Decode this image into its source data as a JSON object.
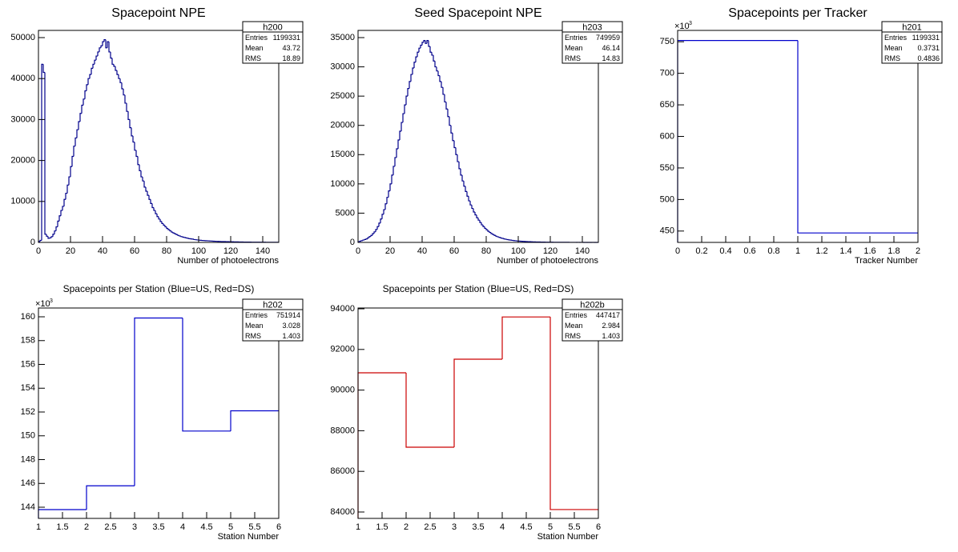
{
  "chart_data": [
    {
      "type": "histogram",
      "title": "Spacepoint NPE",
      "xlabel": "Number of photoelectrons",
      "color": "#00008b",
      "bins": [
        0,
        1,
        2,
        3,
        4,
        5,
        6,
        7,
        8,
        9,
        10,
        11,
        12,
        13,
        14,
        15,
        16,
        17,
        18,
        19,
        20,
        21,
        22,
        23,
        24,
        25,
        26,
        27,
        28,
        29,
        30,
        31,
        32,
        33,
        34,
        35,
        36,
        37,
        38,
        39,
        40,
        41,
        42,
        43,
        44,
        45,
        46,
        47,
        48,
        49,
        50,
        51,
        52,
        53,
        54,
        55,
        56,
        57,
        58,
        59,
        60,
        61,
        62,
        63,
        64,
        65,
        66,
        67,
        68,
        69,
        70,
        71,
        72,
        73,
        74,
        75,
        76,
        77,
        78,
        79,
        80,
        81,
        82,
        83,
        84,
        85,
        86,
        87,
        88,
        89,
        90,
        91,
        92,
        93,
        94,
        95,
        96,
        97,
        98,
        99,
        100,
        101,
        102,
        103,
        104,
        105,
        106,
        107,
        108,
        109,
        110,
        111,
        112,
        113,
        114,
        115,
        116,
        117,
        118,
        119,
        120,
        121,
        122,
        123,
        124,
        125,
        126,
        127,
        128,
        129,
        130,
        131,
        132,
        133,
        134,
        135,
        136,
        137,
        138,
        139,
        140,
        141,
        142,
        143,
        144,
        145,
        146,
        147,
        148,
        149,
        150
      ],
      "counts": [
        200,
        500,
        43500,
        41500,
        2000,
        1500,
        1000,
        1100,
        1400,
        2000,
        2800,
        3800,
        5200,
        6500,
        7800,
        8800,
        10500,
        12000,
        14000,
        16000,
        18500,
        21000,
        23500,
        25500,
        27500,
        29500,
        31500,
        33500,
        35000,
        37000,
        38500,
        40000,
        41000,
        42500,
        43500,
        44500,
        45500,
        46500,
        47500,
        48000,
        49000,
        49500,
        47500,
        49000,
        46500,
        45000,
        43500,
        43000,
        42000,
        41000,
        40000,
        39000,
        37500,
        36000,
        34000,
        32000,
        30000,
        28000,
        26000,
        24500,
        22500,
        21000,
        19000,
        17500,
        16000,
        15000,
        13500,
        12500,
        11500,
        10500,
        9500,
        8500,
        7800,
        7000,
        6300,
        5700,
        5100,
        4600,
        4200,
        3800,
        3400,
        3100,
        2800,
        2500,
        2300,
        2100,
        1900,
        1700,
        1550,
        1400,
        1300,
        1200,
        1100,
        1000,
        900,
        850,
        800,
        700,
        650,
        600,
        550,
        520,
        480,
        450,
        420,
        400,
        380,
        350,
        330,
        300,
        280,
        260,
        240,
        230,
        210,
        200,
        190,
        180,
        170,
        160,
        150,
        140,
        130,
        120,
        115,
        110,
        100,
        95,
        90,
        85,
        80,
        75,
        70,
        65,
        60,
        58,
        55,
        52,
        50,
        48,
        45,
        42,
        40,
        38,
        35,
        33,
        30,
        28,
        25,
        22
      ],
      "xlim": [
        0,
        150
      ],
      "xticks": [
        0,
        20,
        40,
        60,
        80,
        100,
        120,
        140
      ],
      "ylim": [
        0,
        51760
      ],
      "yticks": [
        0,
        10000,
        20000,
        30000,
        40000,
        50000
      ],
      "stats": {
        "name": "h200",
        "rows": [
          [
            "Entries",
            1199331
          ],
          [
            "Mean",
            43.72
          ],
          [
            "RMS",
            18.89
          ]
        ]
      }
    },
    {
      "type": "histogram",
      "title": "Seed Spacepoint NPE",
      "xlabel": "Number of photoelectrons",
      "color": "#00008b",
      "bins": [
        0,
        1,
        2,
        3,
        4,
        5,
        6,
        7,
        8,
        9,
        10,
        11,
        12,
        13,
        14,
        15,
        16,
        17,
        18,
        19,
        20,
        21,
        22,
        23,
        24,
        25,
        26,
        27,
        28,
        29,
        30,
        31,
        32,
        33,
        34,
        35,
        36,
        37,
        38,
        39,
        40,
        41,
        42,
        43,
        44,
        45,
        46,
        47,
        48,
        49,
        50,
        51,
        52,
        53,
        54,
        55,
        56,
        57,
        58,
        59,
        60,
        61,
        62,
        63,
        64,
        65,
        66,
        67,
        68,
        69,
        70,
        71,
        72,
        73,
        74,
        75,
        76,
        77,
        78,
        79,
        80,
        81,
        82,
        83,
        84,
        85,
        86,
        87,
        88,
        89,
        90,
        91,
        92,
        93,
        94,
        95,
        96,
        97,
        98,
        99,
        100,
        101,
        102,
        103,
        104,
        105,
        106,
        107,
        108,
        109,
        110,
        111,
        112,
        113,
        114,
        115,
        116,
        117,
        118,
        119,
        120,
        121,
        122,
        123,
        124,
        125,
        126,
        127,
        128,
        129,
        130,
        131,
        132,
        133,
        134,
        135,
        136,
        137,
        138,
        139,
        140,
        141,
        142,
        143,
        144,
        145,
        146,
        147,
        148,
        149,
        150
      ],
      "counts": [
        100,
        200,
        300,
        400,
        500,
        600,
        800,
        1000,
        1200,
        1500,
        1800,
        2200,
        2700,
        3300,
        4000,
        4800,
        5600,
        6600,
        7700,
        8800,
        10000,
        11500,
        13000,
        14500,
        16000,
        17500,
        19000,
        20500,
        22000,
        23500,
        25000,
        26300,
        27500,
        28700,
        29800,
        30800,
        31700,
        32500,
        33200,
        33700,
        34200,
        34500,
        34000,
        34500,
        33500,
        32500,
        32000,
        31000,
        30000,
        29300,
        28500,
        27500,
        26500,
        25300,
        24000,
        22800,
        21500,
        20000,
        18700,
        17400,
        16200,
        15000,
        13800,
        12600,
        11500,
        10500,
        9600,
        8700,
        7900,
        7100,
        6400,
        5800,
        5200,
        4700,
        4200,
        3800,
        3400,
        3000,
        2700,
        2400,
        2150,
        1900,
        1700,
        1500,
        1350,
        1200,
        1050,
        950,
        850,
        750,
        680,
        600,
        540,
        480,
        430,
        390,
        350,
        310,
        280,
        250,
        230,
        210,
        190,
        170,
        155,
        140,
        125,
        115,
        105,
        95,
        85,
        78,
        70,
        64,
        58,
        53,
        48,
        44,
        40,
        36,
        33,
        30,
        27,
        25,
        22,
        20,
        18,
        17,
        15,
        14,
        13,
        12,
        11,
        10,
        9,
        8,
        8,
        7,
        7,
        6,
        6,
        5,
        5,
        4,
        4,
        3,
        3,
        3,
        2,
        2
      ],
      "xlim": [
        0,
        150
      ],
      "xticks": [
        0,
        20,
        40,
        60,
        80,
        100,
        120,
        140
      ],
      "ylim": [
        0,
        36230
      ],
      "yticks": [
        0,
        5000,
        10000,
        15000,
        20000,
        25000,
        30000,
        35000
      ],
      "stats": {
        "name": "h203",
        "rows": [
          [
            "Entries",
            749959
          ],
          [
            "Mean",
            46.14
          ],
          [
            "RMS",
            14.83
          ]
        ]
      }
    },
    {
      "type": "histogram",
      "title": "Spacepoints per Tracker",
      "xlabel": "Tracker Number",
      "color": "#0000cc",
      "bins": [
        0,
        1,
        2
      ],
      "counts": [
        752,
        447
      ],
      "xlim": [
        0,
        2
      ],
      "xticks": [
        0,
        0.2,
        0.4,
        0.6,
        0.8,
        1,
        1.2,
        1.4,
        1.6,
        1.8,
        2
      ],
      "ylim": [
        432,
        768
      ],
      "yticks": [
        450,
        500,
        550,
        600,
        650,
        700,
        750
      ],
      "y_multiplier": "×10",
      "y_multiplier_exponent": "3",
      "stats": {
        "name": "h201",
        "rows": [
          [
            "Entries",
            1199331
          ],
          [
            "Mean",
            0.3731
          ],
          [
            "RMS",
            0.4836
          ]
        ]
      }
    },
    {
      "type": "histogram",
      "title": "Spacepoints per Station (Blue=US, Red=DS)",
      "xlabel": "Station Number",
      "color": "#0000cc",
      "bins": [
        1,
        2,
        3,
        4,
        5,
        6
      ],
      "counts": [
        143.8,
        145.8,
        159.9,
        150.4,
        152.1
      ],
      "xlim": [
        1,
        6
      ],
      "xticks": [
        1,
        1.5,
        2,
        2.5,
        3,
        3.5,
        4,
        4.5,
        5,
        5.5,
        6
      ],
      "ylim": [
        143.06,
        160.74
      ],
      "yticks": [
        144,
        146,
        148,
        150,
        152,
        154,
        156,
        158,
        160
      ],
      "y_multiplier": "×10",
      "y_multiplier_exponent": "3",
      "stats": {
        "name": "h202",
        "rows": [
          [
            "Entries",
            751914
          ],
          [
            "Mean",
            3.028
          ],
          [
            "RMS",
            1.403
          ]
        ]
      }
    },
    {
      "type": "histogram",
      "title": "Spacepoints per Station (Blue=US, Red=DS)",
      "xlabel": "Station Number",
      "color": "#cc0000",
      "bins": [
        1,
        2,
        3,
        4,
        5,
        6
      ],
      "counts": [
        90850,
        87190,
        91520,
        93600,
        84120
      ],
      "xlim": [
        1,
        6
      ],
      "xticks": [
        1,
        1.5,
        2,
        2.5,
        3,
        3.5,
        4,
        4.5,
        5,
        5.5,
        6
      ],
      "ylim": [
        83685,
        94040
      ],
      "yticks": [
        84000,
        86000,
        88000,
        90000,
        92000,
        94000
      ],
      "stats": {
        "name": "h202b",
        "rows": [
          [
            "Entries",
            447417
          ],
          [
            "Mean",
            2.984
          ],
          [
            "RMS",
            1.403
          ]
        ]
      }
    }
  ]
}
